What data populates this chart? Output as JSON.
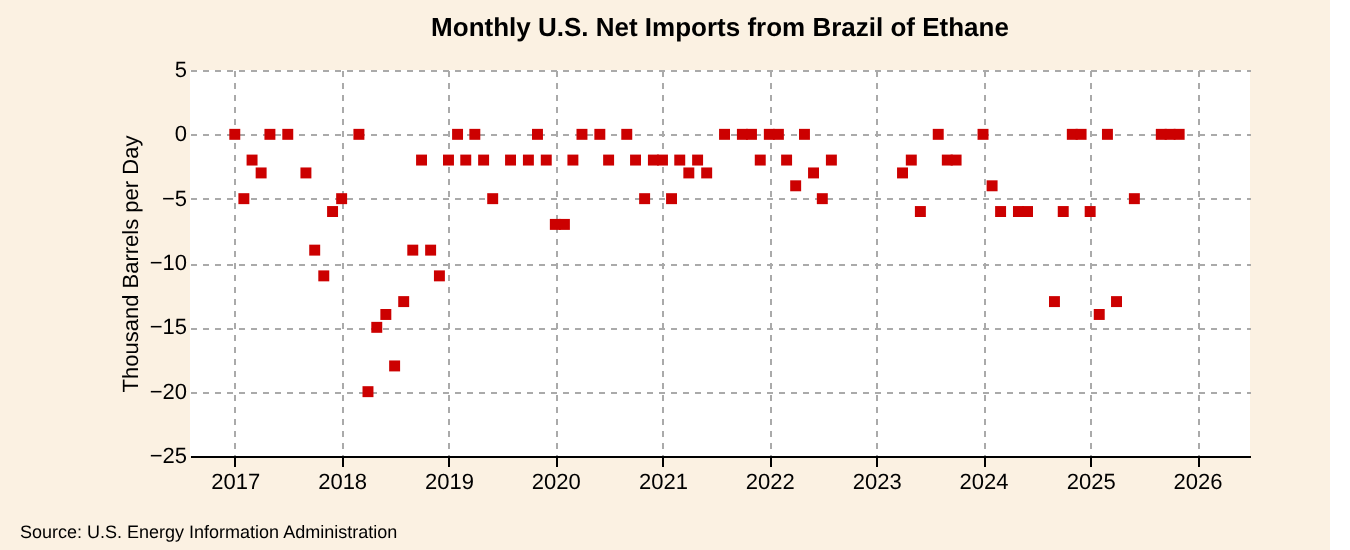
{
  "chart_data": {
    "type": "scatter",
    "title": "Monthly U.S. Net Imports from Brazil of Ethane",
    "ylabel": "Thousand Barrels per Day",
    "x": [
      "2017-01",
      "2017-02",
      "2017-03",
      "2017-04",
      "2017-05",
      "2017-07",
      "2017-09",
      "2017-10",
      "2017-11",
      "2017-12",
      "2018-01",
      "2018-03",
      "2018-04",
      "2018-05",
      "2018-06",
      "2018-07",
      "2018-08",
      "2018-09",
      "2018-10",
      "2018-11",
      "2018-12",
      "2019-01",
      "2019-02",
      "2019-03",
      "2019-04",
      "2019-05",
      "2019-06",
      "2019-08",
      "2019-10",
      "2019-11",
      "2019-12",
      "2020-01",
      "2020-02",
      "2020-03",
      "2020-04",
      "2020-06",
      "2020-07",
      "2020-09",
      "2020-10",
      "2020-11",
      "2020-12",
      "2021-01",
      "2021-02",
      "2021-03",
      "2021-04",
      "2021-05",
      "2021-06",
      "2021-08",
      "2021-10",
      "2021-11",
      "2021-12",
      "2022-01",
      "2022-02",
      "2022-03",
      "2022-04",
      "2022-05",
      "2022-06",
      "2022-07",
      "2022-08",
      "2023-04",
      "2023-05",
      "2023-06",
      "2023-08",
      "2023-09",
      "2023-10",
      "2024-01",
      "2024-02",
      "2024-03",
      "2024-05",
      "2024-06",
      "2024-09",
      "2024-10",
      "2024-11",
      "2024-12",
      "2025-01",
      "2025-02",
      "2025-03",
      "2025-04",
      "2025-06",
      "2025-09",
      "2025-10",
      "2025-11"
    ],
    "series": [
      {
        "color": "#cc0000",
        "values": [
          0,
          -5,
          -2,
          -3,
          0,
          0,
          -3,
          -9,
          -11,
          -6,
          -5,
          0,
          -20,
          -15,
          -14,
          -18,
          -13,
          -9,
          -2,
          -9,
          -11,
          -2,
          0,
          -2,
          0,
          -2,
          -5,
          -2,
          -2,
          0,
          -2,
          -7,
          -7,
          -2,
          0,
          0,
          -2,
          0,
          -2,
          -5,
          -2,
          -2,
          -5,
          -2,
          -3,
          -2,
          -3,
          0,
          0,
          0,
          -2,
          0,
          0,
          -2,
          -4,
          0,
          -3,
          -5,
          -2,
          -3,
          -2,
          -6,
          0,
          -2,
          -2,
          0,
          -4,
          -6,
          -6,
          -6,
          -13,
          -6,
          0,
          0,
          -6,
          -14,
          0,
          -13,
          -5,
          0,
          0,
          0
        ]
      }
    ],
    "xlim": [
      "2016-08",
      "2026-07"
    ],
    "xticks": [
      "2017",
      "2018",
      "2019",
      "2020",
      "2021",
      "2022",
      "2023",
      "2024",
      "2025",
      "2026"
    ],
    "ylim": [
      -25,
      5
    ],
    "yticks": [
      -25,
      -20,
      -15,
      -10,
      -5,
      0,
      5
    ],
    "grid": true,
    "marker": "square",
    "annotations": [
      "Source: U.S. Energy Information Administration"
    ]
  }
}
